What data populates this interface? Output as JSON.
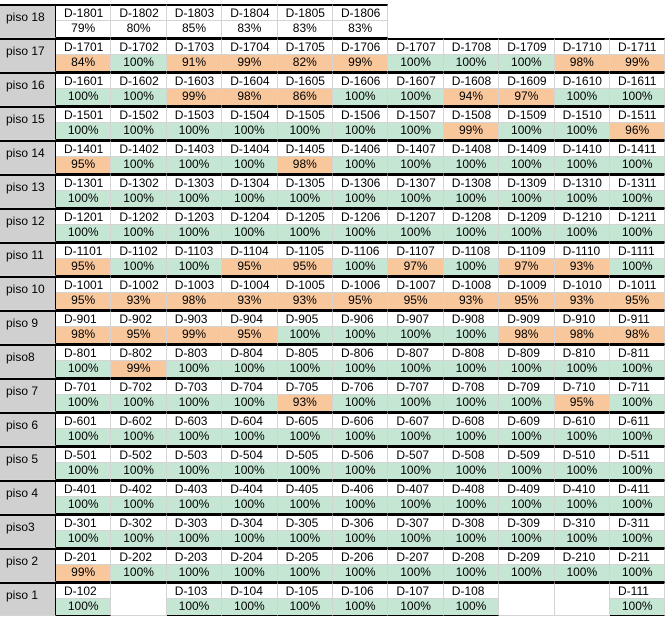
{
  "floors": [
    {
      "label": "piso 18",
      "units": [
        [
          "D-1801",
          "79%"
        ],
        [
          "D-1802",
          "80%"
        ],
        [
          "D-1803",
          "85%"
        ],
        [
          "D-1804",
          "83%"
        ],
        [
          "D-1805",
          "83%"
        ],
        [
          "D-1806",
          "83%"
        ]
      ],
      "top": true
    },
    {
      "label": "piso 17",
      "units": [
        [
          "D-1701",
          "84%"
        ],
        [
          "D-1702",
          "100%"
        ],
        [
          "D-1703",
          "91%"
        ],
        [
          "D-1704",
          "99%"
        ],
        [
          "D-1705",
          "82%"
        ],
        [
          "D-1706",
          "99%"
        ],
        [
          "D-1707",
          "100%"
        ],
        [
          "D-1708",
          "100%"
        ],
        [
          "D-1709",
          "100%"
        ],
        [
          "D-1710",
          "98%"
        ],
        [
          "D-1711",
          "99%"
        ]
      ]
    },
    {
      "label": "piso 16",
      "units": [
        [
          "D-1601",
          "100%"
        ],
        [
          "D-1602",
          "100%"
        ],
        [
          "D-1603",
          "99%"
        ],
        [
          "D-1604",
          "98%"
        ],
        [
          "D-1605",
          "86%"
        ],
        [
          "D-1606",
          "100%"
        ],
        [
          "D-1607",
          "100%"
        ],
        [
          "D-1608",
          "94%"
        ],
        [
          "D-1609",
          "97%"
        ],
        [
          "D-1610",
          "100%"
        ],
        [
          "D-1611",
          "100%"
        ]
      ]
    },
    {
      "label": "piso 15",
      "units": [
        [
          "D-1501",
          "100%"
        ],
        [
          "D-1502",
          "100%"
        ],
        [
          "D-1503",
          "100%"
        ],
        [
          "D-1504",
          "100%"
        ],
        [
          "D-1505",
          "100%"
        ],
        [
          "D-1506",
          "100%"
        ],
        [
          "D-1507",
          "100%"
        ],
        [
          "D-1508",
          "99%"
        ],
        [
          "D-1509",
          "100%"
        ],
        [
          "D-1510",
          "100%"
        ],
        [
          "D-1511",
          "96%"
        ]
      ]
    },
    {
      "label": "piso 14",
      "units": [
        [
          "D-1401",
          "95%"
        ],
        [
          "D-1402",
          "100%"
        ],
        [
          "D-1403",
          "100%"
        ],
        [
          "D-1404",
          "100%"
        ],
        [
          "D-1405",
          "98%"
        ],
        [
          "D-1406",
          "100%"
        ],
        [
          "D-1407",
          "100%"
        ],
        [
          "D-1408",
          "100%"
        ],
        [
          "D-1409",
          "100%"
        ],
        [
          "D-1410",
          "100%"
        ],
        [
          "D-1411",
          "100%"
        ]
      ]
    },
    {
      "label": "piso 13",
      "units": [
        [
          "D-1301",
          "100%"
        ],
        [
          "D-1302",
          "100%"
        ],
        [
          "D-1303",
          "100%"
        ],
        [
          "D-1304",
          "100%"
        ],
        [
          "D-1305",
          "100%"
        ],
        [
          "D-1306",
          "100%"
        ],
        [
          "D-1307",
          "100%"
        ],
        [
          "D-1308",
          "100%"
        ],
        [
          "D-1309",
          "100%"
        ],
        [
          "D-1310",
          "100%"
        ],
        [
          "D-1311",
          "100%"
        ]
      ]
    },
    {
      "label": "piso 12",
      "units": [
        [
          "D-1201",
          "100%"
        ],
        [
          "D-1202",
          "100%"
        ],
        [
          "D-1203",
          "100%"
        ],
        [
          "D-1204",
          "100%"
        ],
        [
          "D-1205",
          "100%"
        ],
        [
          "D-1206",
          "100%"
        ],
        [
          "D-1207",
          "100%"
        ],
        [
          "D-1208",
          "100%"
        ],
        [
          "D-1209",
          "100%"
        ],
        [
          "D-1210",
          "100%"
        ],
        [
          "D-1211",
          "100%"
        ]
      ]
    },
    {
      "label": "piso 11",
      "units": [
        [
          "D-1101",
          "95%"
        ],
        [
          "D-1102",
          "100%"
        ],
        [
          "D-1103",
          "100%"
        ],
        [
          "D-1104",
          "95%"
        ],
        [
          "D-1105",
          "95%"
        ],
        [
          "D-1106",
          "100%"
        ],
        [
          "D-1107",
          "97%"
        ],
        [
          "D-1108",
          "100%"
        ],
        [
          "D-1109",
          "97%"
        ],
        [
          "D-1110",
          "93%"
        ],
        [
          "D-1111",
          "100%"
        ]
      ]
    },
    {
      "label": "piso 10",
      "units": [
        [
          "D-1001",
          "95%"
        ],
        [
          "D-1002",
          "93%"
        ],
        [
          "D-1003",
          "98%"
        ],
        [
          "D-1004",
          "93%"
        ],
        [
          "D-1005",
          "93%"
        ],
        [
          "D-1006",
          "95%"
        ],
        [
          "D-1007",
          "95%"
        ],
        [
          "D-1008",
          "93%"
        ],
        [
          "D-1009",
          "95%"
        ],
        [
          "D-1010",
          "93%"
        ],
        [
          "D-1011",
          "95%"
        ]
      ]
    },
    {
      "label": "piso 9",
      "units": [
        [
          "D-901",
          "98%"
        ],
        [
          "D-902",
          "95%"
        ],
        [
          "D-903",
          "99%"
        ],
        [
          "D-904",
          "95%"
        ],
        [
          "D-905",
          "100%"
        ],
        [
          "D-906",
          "100%"
        ],
        [
          "D-907",
          "100%"
        ],
        [
          "D-908",
          "100%"
        ],
        [
          "D-909",
          "98%"
        ],
        [
          "D-910",
          "98%"
        ],
        [
          "D-911",
          "98%"
        ]
      ]
    },
    {
      "label": "piso8",
      "units": [
        [
          "D-801",
          "100%"
        ],
        [
          "D-802",
          "99%"
        ],
        [
          "D-803",
          "100%"
        ],
        [
          "D-804",
          "100%"
        ],
        [
          "D-805",
          "100%"
        ],
        [
          "D-806",
          "100%"
        ],
        [
          "D-807",
          "100%"
        ],
        [
          "D-808",
          "100%"
        ],
        [
          "D-809",
          "100%"
        ],
        [
          "D-810",
          "100%"
        ],
        [
          "D-811",
          "100%"
        ]
      ]
    },
    {
      "label": "piso 7",
      "units": [
        [
          "D-701",
          "100%"
        ],
        [
          "D-702",
          "100%"
        ],
        [
          "D-703",
          "100%"
        ],
        [
          "D-704",
          "100%"
        ],
        [
          "D-705",
          "93%"
        ],
        [
          "D-706",
          "100%"
        ],
        [
          "D-707",
          "100%"
        ],
        [
          "D-708",
          "100%"
        ],
        [
          "D-709",
          "100%"
        ],
        [
          "D-710",
          "95%"
        ],
        [
          "D-711",
          "100%"
        ]
      ]
    },
    {
      "label": "piso 6",
      "units": [
        [
          "D-601",
          "100%"
        ],
        [
          "D-602",
          "100%"
        ],
        [
          "D-603",
          "100%"
        ],
        [
          "D-604",
          "100%"
        ],
        [
          "D-605",
          "100%"
        ],
        [
          "D-606",
          "100%"
        ],
        [
          "D-607",
          "100%"
        ],
        [
          "D-608",
          "100%"
        ],
        [
          "D-609",
          "100%"
        ],
        [
          "D-610",
          "100%"
        ],
        [
          "D-611",
          "100%"
        ]
      ]
    },
    {
      "label": "piso 5",
      "units": [
        [
          "D-501",
          "100%"
        ],
        [
          "D-502",
          "100%"
        ],
        [
          "D-503",
          "100%"
        ],
        [
          "D-504",
          "100%"
        ],
        [
          "D-505",
          "100%"
        ],
        [
          "D-506",
          "100%"
        ],
        [
          "D-507",
          "100%"
        ],
        [
          "D-508",
          "100%"
        ],
        [
          "D-509",
          "100%"
        ],
        [
          "D-510",
          "100%"
        ],
        [
          "D-511",
          "100%"
        ]
      ]
    },
    {
      "label": "piso 4",
      "units": [
        [
          "D-401",
          "100%"
        ],
        [
          "D-402",
          "100%"
        ],
        [
          "D-403",
          "100%"
        ],
        [
          "D-404",
          "100%"
        ],
        [
          "D-405",
          "100%"
        ],
        [
          "D-406",
          "100%"
        ],
        [
          "D-407",
          "100%"
        ],
        [
          "D-408",
          "100%"
        ],
        [
          "D-409",
          "100%"
        ],
        [
          "D-410",
          "100%"
        ],
        [
          "D-411",
          "100%"
        ]
      ]
    },
    {
      "label": "piso3",
      "units": [
        [
          "D-301",
          "100%"
        ],
        [
          "D-302",
          "100%"
        ],
        [
          "D-303",
          "100%"
        ],
        [
          "D-304",
          "100%"
        ],
        [
          "D-305",
          "100%"
        ],
        [
          "D-306",
          "100%"
        ],
        [
          "D-307",
          "100%"
        ],
        [
          "D-308",
          "100%"
        ],
        [
          "D-309",
          "100%"
        ],
        [
          "D-310",
          "100%"
        ],
        [
          "D-311",
          "100%"
        ]
      ]
    },
    {
      "label": "piso 2",
      "units": [
        [
          "D-201",
          "99%"
        ],
        [
          "D-202",
          "100%"
        ],
        [
          "D-203",
          "100%"
        ],
        [
          "D-204",
          "100%"
        ],
        [
          "D-205",
          "100%"
        ],
        [
          "D-206",
          "100%"
        ],
        [
          "D-207",
          "100%"
        ],
        [
          "D-208",
          "100%"
        ],
        [
          "D-209",
          "100%"
        ],
        [
          "D-210",
          "100%"
        ],
        [
          "D-211",
          "100%"
        ]
      ]
    },
    {
      "label": "piso 1",
      "units": [
        [
          "D-102",
          "100%"
        ],
        null,
        [
          "D-103",
          "100%"
        ],
        [
          "D-104",
          "100%"
        ],
        [
          "D-105",
          "100%"
        ],
        [
          "D-106",
          "100%"
        ],
        [
          "D-107",
          "100%"
        ],
        [
          "D-108",
          "100%"
        ],
        null,
        null,
        [
          "D-111",
          "100%"
        ]
      ]
    }
  ],
  "colors": {
    "full": "#c5e6d3",
    "partial": "#f9c79c",
    "floor": "#d0d0d0"
  }
}
